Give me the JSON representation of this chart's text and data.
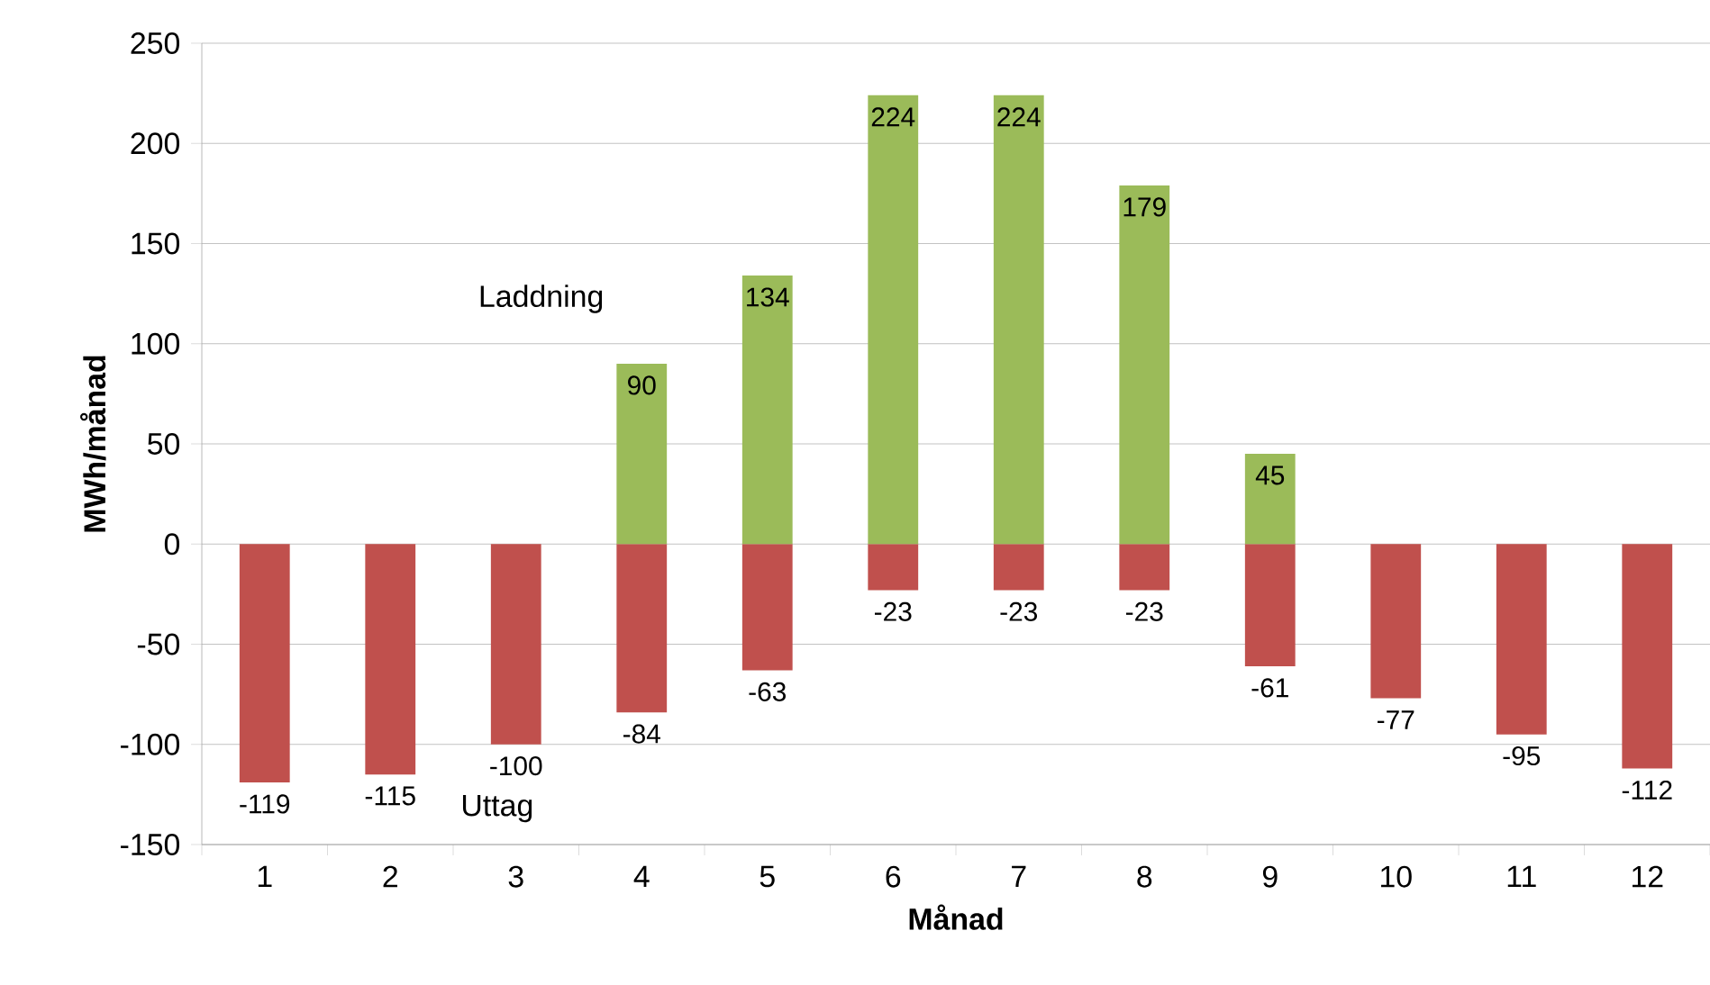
{
  "chart_data": {
    "type": "bar",
    "xlabel": "Månad",
    "ylabel": "MWh/månad",
    "categories": [
      "1",
      "2",
      "3",
      "4",
      "5",
      "6",
      "7",
      "8",
      "9",
      "10",
      "11",
      "12"
    ],
    "series": [
      {
        "name": "Laddning",
        "color": "#9bbb59",
        "values": [
          null,
          null,
          null,
          90,
          134,
          224,
          224,
          179,
          45,
          null,
          null,
          null
        ]
      },
      {
        "name": "Uttag",
        "color": "#c0504d",
        "values": [
          -119,
          -115,
          -100,
          -84,
          -63,
          -23,
          -23,
          -23,
          -61,
          -77,
          -95,
          -112
        ]
      }
    ],
    "ylim": [
      -150,
      250
    ],
    "yticks": [
      -150,
      -100,
      -50,
      0,
      50,
      100,
      150,
      200,
      250
    ],
    "grid": "y",
    "legend": false,
    "stacked": true,
    "data_labels": true
  }
}
